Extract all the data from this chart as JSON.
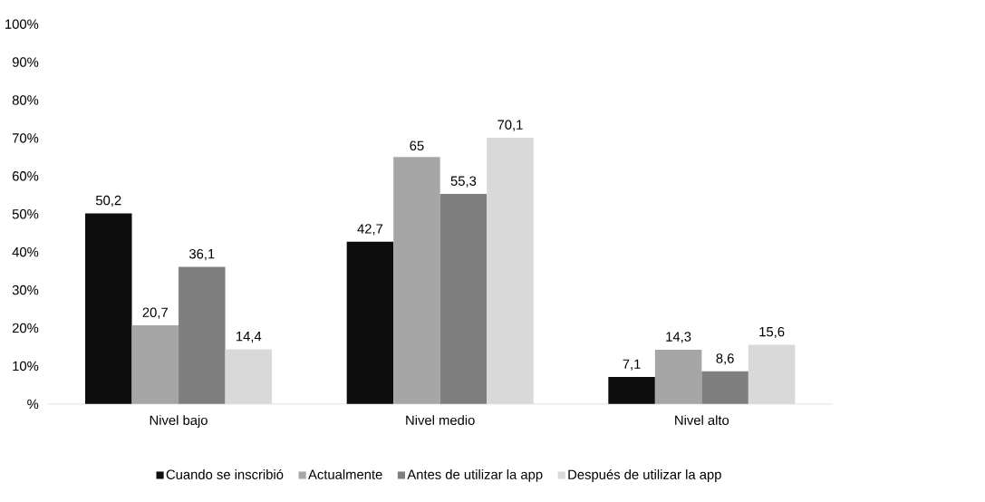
{
  "chart_data": {
    "type": "bar",
    "categories": [
      "Nivel bajo",
      "Nivel medio",
      "Nivel alto"
    ],
    "series": [
      {
        "name": "Cuando se inscribió",
        "color": "#0d0d0d",
        "values": [
          50.2,
          42.7,
          7.1
        ],
        "value_labels": [
          "50,2",
          "42,7",
          "7,1"
        ]
      },
      {
        "name": "Actualmente",
        "color": "#a6a6a6",
        "values": [
          20.7,
          65,
          14.3
        ],
        "value_labels": [
          "20,7",
          "65",
          "14,3"
        ]
      },
      {
        "name": "Antes de utilizar la app",
        "color": "#7f7f7f",
        "values": [
          36.1,
          55.3,
          8.6
        ],
        "value_labels": [
          "36,1",
          "55,3",
          "8,6"
        ]
      },
      {
        "name": "Después de utilizar la app",
        "color": "#d9d9d9",
        "values": [
          14.4,
          70.1,
          15.6
        ],
        "value_labels": [
          "14,4",
          "70,1",
          "15,6"
        ]
      }
    ],
    "ylim": [
      0,
      100
    ],
    "yticks": [
      {
        "value": 0,
        "label": "%"
      },
      {
        "value": 10,
        "label": "10%"
      },
      {
        "value": 20,
        "label": "20%"
      },
      {
        "value": 30,
        "label": "30%"
      },
      {
        "value": 40,
        "label": "40%"
      },
      {
        "value": 50,
        "label": "50%"
      },
      {
        "value": 60,
        "label": "60%"
      },
      {
        "value": 70,
        "label": "70%"
      },
      {
        "value": 80,
        "label": "80%"
      },
      {
        "value": 90,
        "label": "90%"
      },
      {
        "value": 100,
        "label": "100%"
      }
    ],
    "grid": false,
    "legend": "bottom"
  }
}
